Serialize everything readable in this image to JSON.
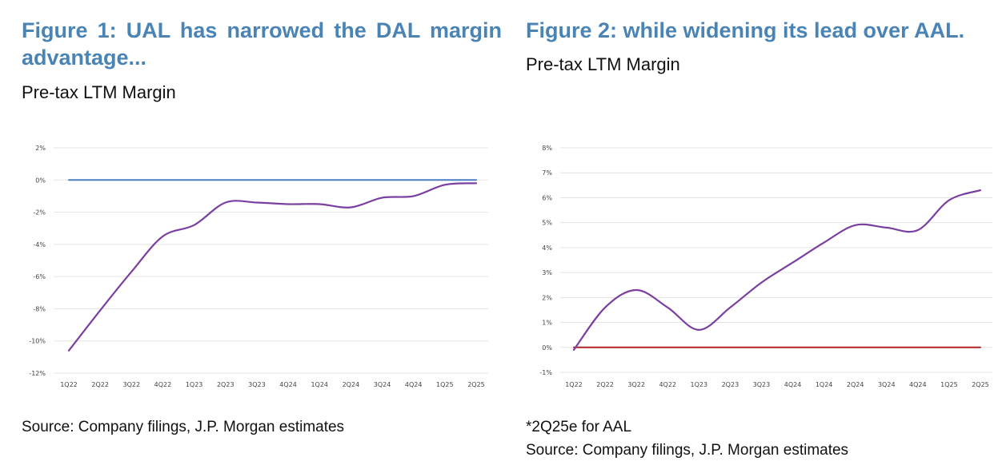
{
  "figures": [
    {
      "title": "Figure 1: UAL has narrowed the DAL margin advantage...",
      "subtitle": "Pre-tax LTM Margin",
      "source": "Source: Company filings, J.P. Morgan estimates"
    },
    {
      "title": "Figure 2: while widening its lead over AAL.",
      "subtitle": "Pre-tax LTM Margin",
      "note": "*2Q25e for AAL",
      "source": "Source: Company filings, J.P. Morgan estimates"
    }
  ],
  "chart_data": [
    {
      "type": "line",
      "categories": [
        "1Q22",
        "2Q22",
        "3Q22",
        "4Q22",
        "1Q23",
        "2Q23",
        "3Q23",
        "4Q24",
        "1Q24",
        "2Q24",
        "3Q24",
        "4Q24",
        "1Q25",
        "2Q25"
      ],
      "ylim": [
        -12,
        2
      ],
      "yticks": [
        2,
        0,
        -2,
        -4,
        -6,
        -8,
        -10,
        -12
      ],
      "ytick_labels": [
        "2%",
        "0%",
        "-2%",
        "-4%",
        "-6%",
        "-8%",
        "-10%",
        "-12%"
      ],
      "grid": true,
      "series": [
        {
          "color": "#4a7fc0",
          "values": [
            0,
            0,
            0,
            0,
            0,
            0,
            0,
            0,
            0,
            0,
            0,
            0,
            0,
            0
          ]
        },
        {
          "color": "#7a3fa0",
          "values": [
            -10.6,
            -8.1,
            -5.7,
            -3.5,
            -2.8,
            -1.4,
            -1.4,
            -1.5,
            -1.5,
            -1.7,
            -1.1,
            -1.0,
            -0.3,
            -0.2
          ]
        }
      ]
    },
    {
      "type": "line",
      "categories": [
        "1Q22",
        "2Q22",
        "3Q22",
        "4Q22",
        "1Q23",
        "2Q23",
        "3Q23",
        "4Q24",
        "1Q24",
        "2Q24",
        "3Q24",
        "4Q24",
        "1Q25",
        "2Q25"
      ],
      "ylim": [
        -1,
        8
      ],
      "yticks": [
        8,
        7,
        6,
        5,
        4,
        3,
        2,
        1,
        0,
        -1
      ],
      "ytick_labels": [
        "8%",
        "7%",
        "6%",
        "5%",
        "4%",
        "3%",
        "2%",
        "1%",
        "0%",
        "-1%"
      ],
      "grid": true,
      "series": [
        {
          "color": "#b22222",
          "values": [
            0,
            0,
            0,
            0,
            0,
            0,
            0,
            0,
            0,
            0,
            0,
            0,
            0,
            0
          ]
        },
        {
          "color": "#7a3fa0",
          "values": [
            -0.1,
            1.6,
            2.3,
            1.6,
            0.7,
            1.6,
            2.6,
            3.4,
            4.2,
            4.9,
            4.8,
            4.7,
            5.9,
            6.3
          ]
        }
      ]
    }
  ]
}
